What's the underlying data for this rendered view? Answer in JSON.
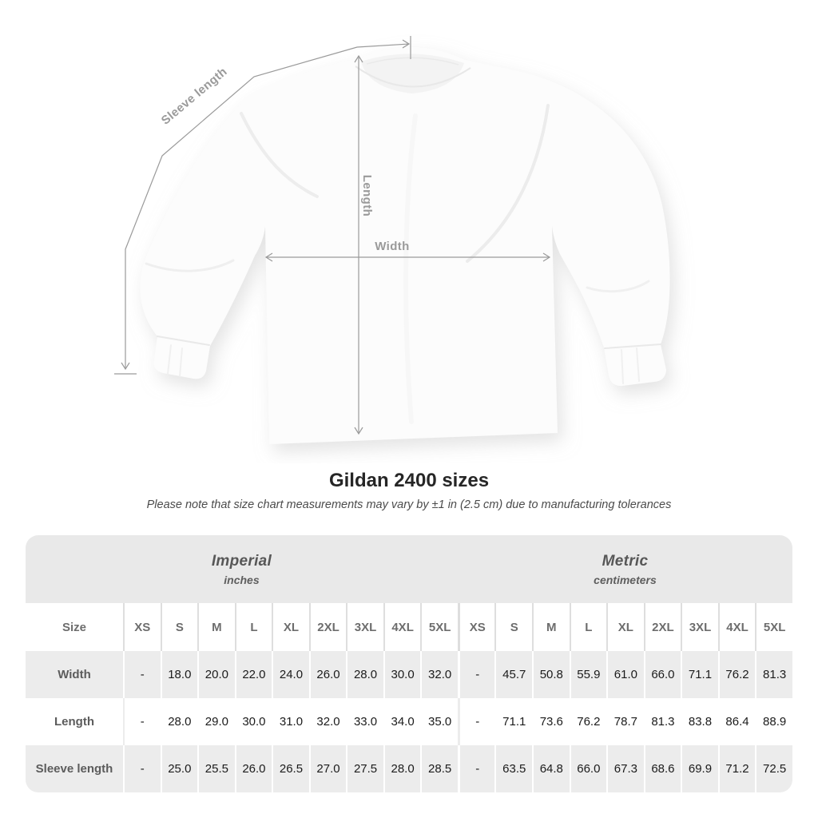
{
  "diagram": {
    "labels": {
      "sleeve_length": "Sleeve length",
      "length": "Length",
      "width": "Width"
    }
  },
  "title": "Gildan 2400 sizes",
  "subtitle": "Please note that size chart measurements may vary by ±1 in (2.5 cm) due to manufacturing tolerances",
  "colors": {
    "band_header": "#e9e9e9",
    "row_stripe": "#ececec",
    "measure_line": "#9a9a9a"
  },
  "table": {
    "size_header": "Size",
    "unit_groups": [
      {
        "label": "Imperial",
        "sublabel": "inches"
      },
      {
        "label": "Metric",
        "sublabel": "centimeters"
      }
    ],
    "sizes": [
      "XS",
      "S",
      "M",
      "L",
      "XL",
      "2XL",
      "3XL",
      "4XL",
      "5XL"
    ],
    "rows": [
      {
        "label": "Width",
        "imperial": [
          "-",
          "18.0",
          "20.0",
          "22.0",
          "24.0",
          "26.0",
          "28.0",
          "30.0",
          "32.0"
        ],
        "metric": [
          "-",
          "45.7",
          "50.8",
          "55.9",
          "61.0",
          "66.0",
          "71.1",
          "76.2",
          "81.3"
        ]
      },
      {
        "label": "Length",
        "imperial": [
          "-",
          "28.0",
          "29.0",
          "30.0",
          "31.0",
          "32.0",
          "33.0",
          "34.0",
          "35.0"
        ],
        "metric": [
          "-",
          "71.1",
          "73.6",
          "76.2",
          "78.7",
          "81.3",
          "83.8",
          "86.4",
          "88.9"
        ]
      },
      {
        "label": "Sleeve length",
        "imperial": [
          "-",
          "25.0",
          "25.5",
          "26.0",
          "26.5",
          "27.0",
          "27.5",
          "28.0",
          "28.5"
        ],
        "metric": [
          "-",
          "63.5",
          "64.8",
          "66.0",
          "67.3",
          "68.6",
          "69.9",
          "71.2",
          "72.5"
        ]
      }
    ]
  }
}
